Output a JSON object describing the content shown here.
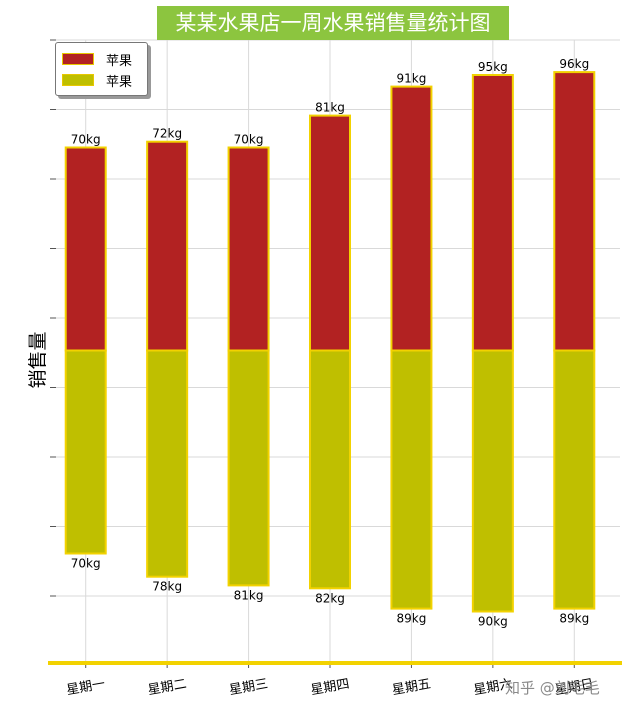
{
  "title": "某某水果店一周水果销售量统计图",
  "ylabel": "销售量",
  "legend": [
    {
      "label": "苹果",
      "color": "#b22222"
    },
    {
      "label": "苹果",
      "color": "#bfbf00"
    }
  ],
  "watermark": "知乎 @刘毛毛",
  "chart_data": {
    "type": "bar",
    "stacked": true,
    "orientation": "vertical",
    "categories": [
      "星期一",
      "星期二",
      "星期三",
      "星期四",
      "星期五",
      "星期六",
      "星期日"
    ],
    "series": [
      {
        "name": "苹果",
        "color": "#bfbf00",
        "values": [
          70,
          78,
          81,
          82,
          89,
          90,
          89
        ]
      },
      {
        "name": "苹果",
        "color": "#b22222",
        "values": [
          70,
          72,
          70,
          81,
          91,
          95,
          96
        ]
      }
    ],
    "labels_top": [
      "70kg",
      "72kg",
      "70kg",
      "81kg",
      "91kg",
      "95kg",
      "96kg"
    ],
    "labels_bottom": [
      "70kg",
      "78kg",
      "81kg",
      "82kg",
      "89kg",
      "90kg",
      "89kg"
    ],
    "title": "某某水果店一周水果销售量统计图",
    "xlabel": "",
    "ylabel": "销售量",
    "grid": true,
    "legend_position": "top-left",
    "bar_edge_color": "#f2d200",
    "axis_color": "#f2d200"
  }
}
